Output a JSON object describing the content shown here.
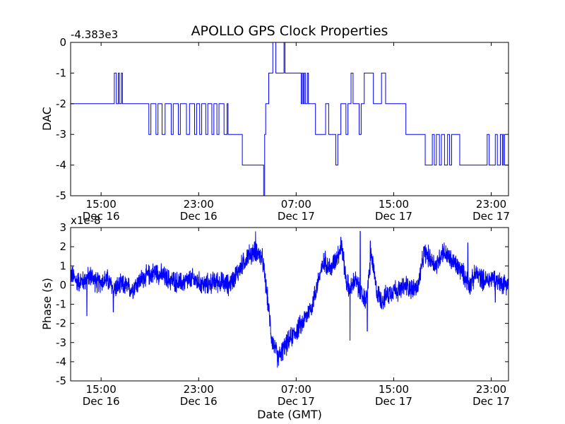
{
  "figure": {
    "title": "APOLLO GPS Clock Properties",
    "xlabel": "Date (GMT)",
    "x_tick_labels": [
      {
        "time": "15:00",
        "date": "Dec 16"
      },
      {
        "time": "23:00",
        "date": "Dec 16"
      },
      {
        "time": "07:00",
        "date": "Dec 17"
      },
      {
        "time": "15:00",
        "date": "Dec 17"
      },
      {
        "time": "23:00",
        "date": "Dec 17"
      }
    ]
  },
  "chart_data": [
    {
      "type": "line",
      "ylabel": "DAC",
      "offset_label": "-4.383e3",
      "ylim": [
        -5,
        0
      ],
      "yticks": [
        "0",
        "-1",
        "-2",
        "-3",
        "-4",
        "-5"
      ],
      "xlim": [
        "2011-12-16 12:30",
        "2011-12-18 00:25"
      ],
      "x_ticks": [
        "2011-12-16 15:00",
        "2011-12-16 23:00",
        "2011-12-17 07:00",
        "2011-12-17 15:00",
        "2011-12-17 23:00"
      ],
      "grid": false,
      "series": [
        {
          "values_note": "",
          "steps": [
            [
              "2011-12-16 12:30",
              -2
            ],
            [
              "2011-12-16 16:05",
              -1
            ],
            [
              "2011-12-16 16:15",
              -2
            ],
            [
              "2011-12-16 16:25",
              -1
            ],
            [
              "2011-12-16 16:30",
              -2
            ],
            [
              "2011-12-16 16:40",
              -1
            ],
            [
              "2011-12-16 16:45",
              -2
            ],
            [
              "2011-12-16 18:55",
              -3
            ],
            [
              "2011-12-16 19:05",
              -2
            ],
            [
              "2011-12-16 19:30",
              -3
            ],
            [
              "2011-12-16 19:40",
              -2
            ],
            [
              "2011-12-16 20:00",
              -3
            ],
            [
              "2011-12-16 20:15",
              -2
            ],
            [
              "2011-12-16 20:45",
              -3
            ],
            [
              "2011-12-16 20:55",
              -2
            ],
            [
              "2011-12-16 21:20",
              -3
            ],
            [
              "2011-12-16 21:30",
              -2
            ],
            [
              "2011-12-16 22:00",
              -3
            ],
            [
              "2011-12-16 22:15",
              -2
            ],
            [
              "2011-12-16 22:40",
              -3
            ],
            [
              "2011-12-16 22:50",
              -2
            ],
            [
              "2011-12-16 23:05",
              -3
            ],
            [
              "2011-12-16 23:15",
              -2
            ],
            [
              "2011-12-16 23:35",
              -3
            ],
            [
              "2011-12-16 23:45",
              -2
            ],
            [
              "2011-12-17 00:05",
              -3
            ],
            [
              "2011-12-17 00:15",
              -2
            ],
            [
              "2011-12-17 00:30",
              -3
            ],
            [
              "2011-12-17 00:40",
              -2
            ],
            [
              "2011-12-17 01:05",
              -3
            ],
            [
              "2011-12-17 01:20",
              -2
            ],
            [
              "2011-12-17 01:25",
              -3
            ],
            [
              "2011-12-17 02:35",
              -4
            ],
            [
              "2011-12-17 04:20",
              -5
            ],
            [
              "2011-12-17 04:25",
              -3
            ],
            [
              "2011-12-17 04:30",
              -2
            ],
            [
              "2011-12-17 04:45",
              -1
            ],
            [
              "2011-12-17 05:05",
              0
            ],
            [
              "2011-12-17 05:20",
              -1
            ],
            [
              "2011-12-17 06:00",
              0
            ],
            [
              "2011-12-17 06:05",
              -1
            ],
            [
              "2011-12-17 07:25",
              -2
            ],
            [
              "2011-12-17 07:30",
              -1
            ],
            [
              "2011-12-17 07:35",
              -2
            ],
            [
              "2011-12-17 07:40",
              -1
            ],
            [
              "2011-12-17 07:45",
              -2
            ],
            [
              "2011-12-17 07:55",
              -1
            ],
            [
              "2011-12-17 08:00",
              -2
            ],
            [
              "2011-12-17 08:35",
              -3
            ],
            [
              "2011-12-17 09:25",
              -2
            ],
            [
              "2011-12-17 09:40",
              -3
            ],
            [
              "2011-12-17 10:15",
              -4
            ],
            [
              "2011-12-17 10:25",
              -3
            ],
            [
              "2011-12-17 10:40",
              -2
            ],
            [
              "2011-12-17 11:05",
              -3
            ],
            [
              "2011-12-17 11:15",
              -2
            ],
            [
              "2011-12-17 11:30",
              -1
            ],
            [
              "2011-12-17 11:40",
              -2
            ],
            [
              "2011-12-17 12:10",
              -3
            ],
            [
              "2011-12-17 12:20",
              -2
            ],
            [
              "2011-12-17 12:35",
              -1
            ],
            [
              "2011-12-17 13:20",
              -2
            ],
            [
              "2011-12-17 14:00",
              -1
            ],
            [
              "2011-12-17 14:20",
              -2
            ],
            [
              "2011-12-17 16:00",
              -3
            ],
            [
              "2011-12-17 17:35",
              -4
            ],
            [
              "2011-12-17 18:10",
              -3
            ],
            [
              "2011-12-17 18:20",
              -4
            ],
            [
              "2011-12-17 18:30",
              -3
            ],
            [
              "2011-12-17 18:45",
              -4
            ],
            [
              "2011-12-17 18:55",
              -3
            ],
            [
              "2011-12-17 19:10",
              -4
            ],
            [
              "2011-12-17 19:25",
              -3
            ],
            [
              "2011-12-17 19:35",
              -4
            ],
            [
              "2011-12-17 19:45",
              -3
            ],
            [
              "2011-12-17 20:25",
              -4
            ],
            [
              "2011-12-17 22:40",
              -3
            ],
            [
              "2011-12-17 22:50",
              -4
            ],
            [
              "2011-12-17 23:20",
              -3
            ],
            [
              "2011-12-17 23:30",
              -4
            ],
            [
              "2011-12-17 23:45",
              -3
            ],
            [
              "2011-12-17 23:55",
              -4
            ],
            [
              "2011-12-18 00:00",
              -3
            ],
            [
              "2011-12-18 00:05",
              -4
            ],
            [
              "2011-12-18 00:25",
              -4
            ]
          ]
        }
      ]
    },
    {
      "type": "line",
      "ylabel": "Phase (s)",
      "offset_label": "x1e-8",
      "ylim": [
        -5,
        3
      ],
      "yticks": [
        "3",
        "2",
        "1",
        "0",
        "-1",
        "-2",
        "-3",
        "-4",
        "-5"
      ],
      "xlim": [
        "2011-12-16 12:30",
        "2011-12-18 00:25"
      ],
      "x_ticks": [
        "2011-12-16 15:00",
        "2011-12-16 23:00",
        "2011-12-17 07:00",
        "2011-12-17 15:00",
        "2011-12-17 23:00"
      ],
      "grid": false,
      "series": [
        {
          "trend": [
            [
              "2011-12-16 12:30",
              0.6
            ],
            [
              "2011-12-16 13:00",
              0.2
            ],
            [
              "2011-12-16 13:30",
              0.2
            ],
            [
              "2011-12-16 14:10",
              0.5
            ],
            [
              "2011-12-16 14:40",
              0.1
            ],
            [
              "2011-12-16 15:30",
              0.3
            ],
            [
              "2011-12-16 16:00",
              -0.2
            ],
            [
              "2011-12-16 16:45",
              0.0
            ],
            [
              "2011-12-16 17:30",
              -0.2
            ],
            [
              "2011-12-16 18:30",
              0.4
            ],
            [
              "2011-12-16 19:30",
              0.7
            ],
            [
              "2011-12-16 20:30",
              0.3
            ],
            [
              "2011-12-16 21:30",
              0.1
            ],
            [
              "2011-12-16 22:30",
              0.3
            ],
            [
              "2011-12-16 23:30",
              0.0
            ],
            [
              "2011-12-17 00:30",
              0.2
            ],
            [
              "2011-12-17 01:30",
              0.0
            ],
            [
              "2011-12-17 02:20",
              0.8
            ],
            [
              "2011-12-17 03:00",
              1.5
            ],
            [
              "2011-12-17 03:45",
              1.8
            ],
            [
              "2011-12-17 04:15",
              1.3
            ],
            [
              "2011-12-17 04:40",
              -0.8
            ],
            [
              "2011-12-17 05:00",
              -2.8
            ],
            [
              "2011-12-17 05:30",
              -3.8
            ],
            [
              "2011-12-17 06:00",
              -3.3
            ],
            [
              "2011-12-17 06:45",
              -2.6
            ],
            [
              "2011-12-17 07:30",
              -2.0
            ],
            [
              "2011-12-17 08:20",
              -1.0
            ],
            [
              "2011-12-17 08:50",
              0.3
            ],
            [
              "2011-12-17 09:20",
              1.3
            ],
            [
              "2011-12-17 09:50",
              0.8
            ],
            [
              "2011-12-17 10:20",
              1.5
            ],
            [
              "2011-12-17 10:45",
              2.0
            ],
            [
              "2011-12-17 11:05",
              0.3
            ],
            [
              "2011-12-17 11:25",
              -0.3
            ],
            [
              "2011-12-17 11:50",
              0.3
            ],
            [
              "2011-12-17 12:20",
              -0.5
            ],
            [
              "2011-12-17 12:45",
              -0.8
            ],
            [
              "2011-12-17 13:10",
              1.6
            ],
            [
              "2011-12-17 13:35",
              -0.3
            ],
            [
              "2011-12-17 14:00",
              -0.8
            ],
            [
              "2011-12-17 14:30",
              -0.5
            ],
            [
              "2011-12-17 15:00",
              -0.2
            ],
            [
              "2011-12-17 15:30",
              -0.3
            ],
            [
              "2011-12-17 16:00",
              0.0
            ],
            [
              "2011-12-17 16:30",
              -0.2
            ],
            [
              "2011-12-17 17:00",
              -0.1
            ],
            [
              "2011-12-17 17:30",
              1.7
            ],
            [
              "2011-12-17 18:00",
              1.4
            ],
            [
              "2011-12-17 18:30",
              1.0
            ],
            [
              "2011-12-17 19:00",
              1.8
            ],
            [
              "2011-12-17 19:40",
              1.3
            ],
            [
              "2011-12-17 20:30",
              0.8
            ],
            [
              "2011-12-17 21:15",
              0.0
            ],
            [
              "2011-12-17 21:45",
              0.6
            ],
            [
              "2011-12-17 22:30",
              0.2
            ],
            [
              "2011-12-17 23:15",
              0.4
            ],
            [
              "2011-12-17 23:45",
              0.1
            ],
            [
              "2011-12-18 00:25",
              0.1
            ]
          ],
          "noise_amplitude": 0.45,
          "spikes": [
            [
              "2011-12-16 13:50",
              -1.6
            ],
            [
              "2011-12-16 16:00",
              -1.4
            ],
            [
              "2011-12-17 03:40",
              2.8
            ],
            [
              "2011-12-17 05:30",
              -4.0
            ],
            [
              "2011-12-17 10:40",
              2.5
            ],
            [
              "2011-12-17 11:25",
              -2.9
            ],
            [
              "2011-12-17 12:15",
              2.8
            ],
            [
              "2011-12-17 12:50",
              -2.4
            ],
            [
              "2011-12-17 13:05",
              2.3
            ],
            [
              "2011-12-17 21:05",
              2.2
            ],
            [
              "2011-12-17 23:20",
              -0.9
            ]
          ]
        }
      ]
    }
  ]
}
